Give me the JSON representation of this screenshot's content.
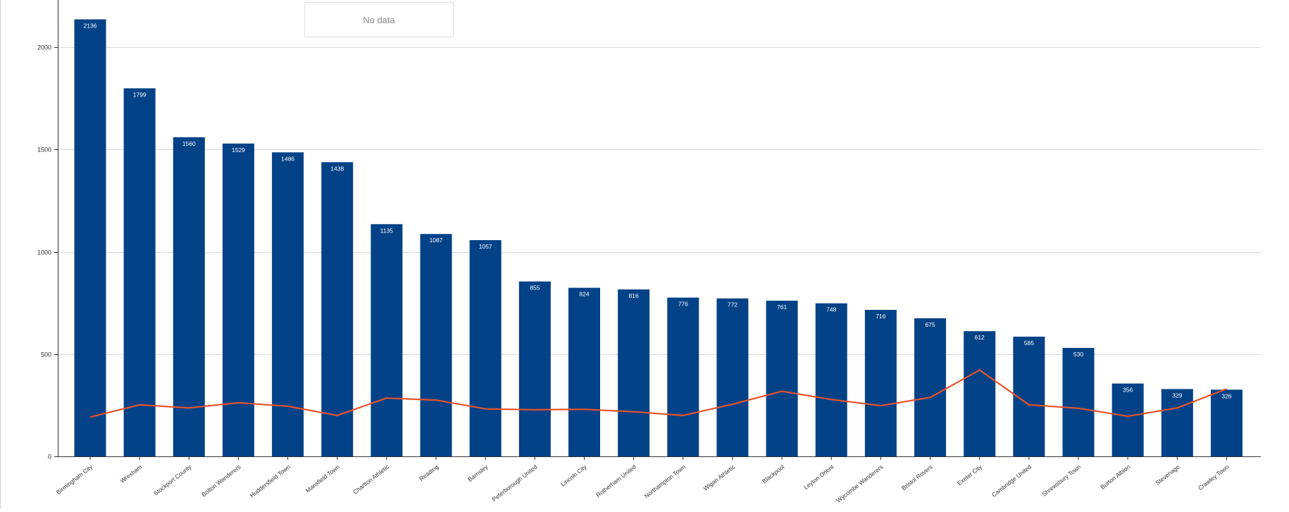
{
  "chart_data": {
    "type": "bar",
    "categories": [
      "Birmingham City",
      "Wrexham",
      "Stockport County",
      "Bolton Wanderers",
      "Huddersfield Town",
      "Mansfield Town",
      "Charlton Athletic",
      "Reading",
      "Barnsley",
      "Peterborough United",
      "Lincoln City",
      "Rotherham United",
      "Northampton Town",
      "Wigan Athletic",
      "Blackpool",
      "Leyton Orient",
      "Wycombe Wanderers",
      "Bristol Rovers",
      "Exeter City",
      "Cambridge United",
      "Shrewsbury Town",
      "Burton Albion",
      "Stevenage",
      "Crawley Town"
    ],
    "series": [
      {
        "type": "bar",
        "values": [
          2136,
          1799,
          1560,
          1529,
          1486,
          1438,
          1135,
          1087,
          1057,
          855,
          824,
          816,
          776,
          772,
          761,
          748,
          716,
          675,
          612,
          585,
          530,
          356,
          329,
          326
        ],
        "color": "#034287",
        "data_labels": [
          "2136",
          "1799",
          "1560",
          "1529",
          "1486",
          "1438",
          "1135",
          "1087",
          "1057",
          "855",
          "824",
          "816",
          "776",
          "772",
          "761",
          "748",
          "716",
          "675",
          "612",
          "585",
          "530",
          "356",
          "329",
          "326"
        ]
      },
      {
        "type": "line",
        "values": [
          192,
          252,
          237,
          262,
          245,
          200,
          285,
          275,
          232,
          228,
          230,
          218,
          200,
          255,
          318,
          278,
          248,
          288,
          422,
          252,
          235,
          196,
          237,
          330
        ],
        "color": "#e6532c"
      }
    ],
    "ylim": [
      0,
      2200
    ],
    "yticks": [
      0,
      500,
      1000,
      1500,
      2000
    ],
    "ytick_labels": [
      "0",
      "500",
      "1000",
      "1500",
      "2000"
    ],
    "grid": true,
    "xlabel": "",
    "ylabel": "",
    "title": ""
  },
  "overlay": {
    "no_data_label": "No data"
  }
}
